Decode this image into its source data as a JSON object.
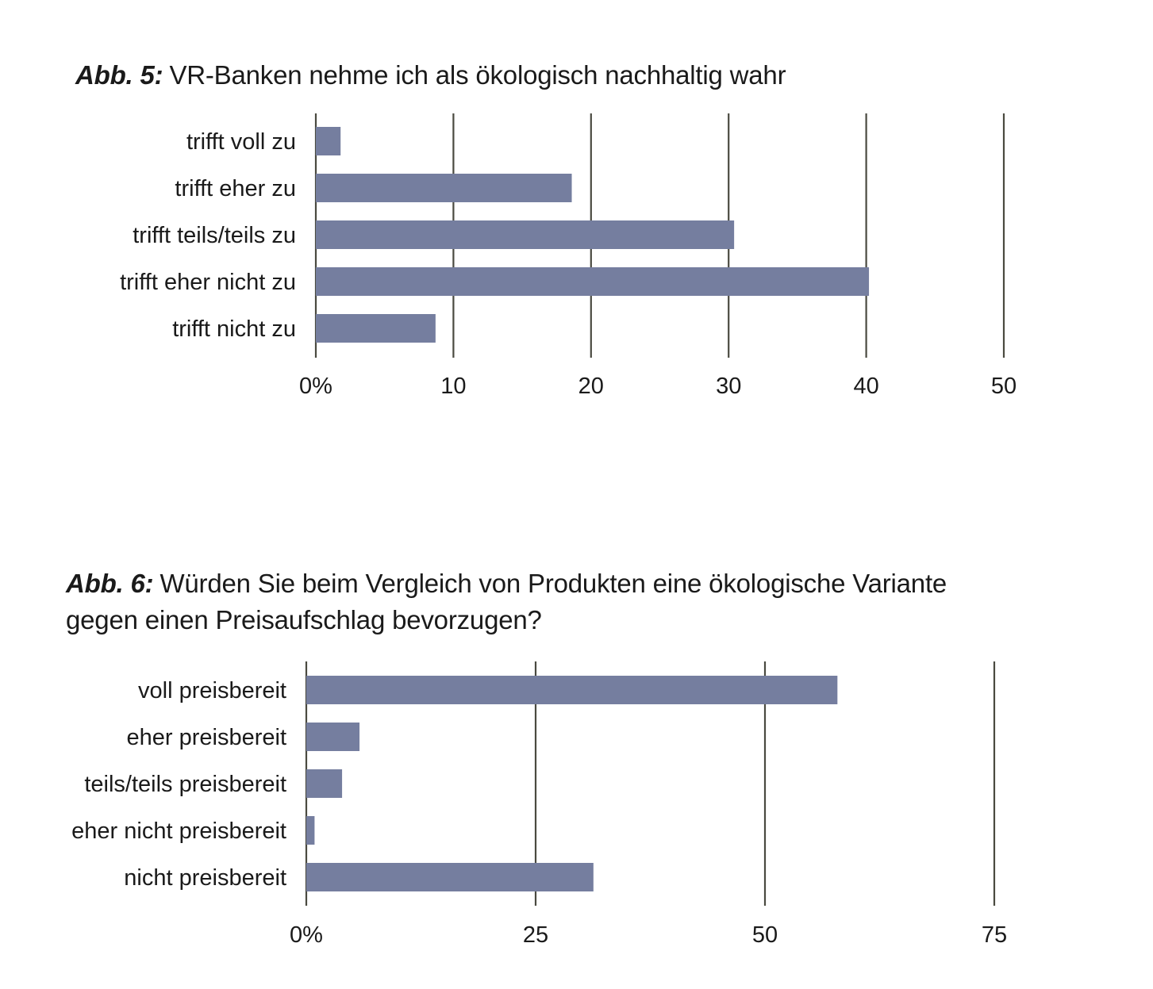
{
  "charts": [
    {
      "figure_label": "Abb. 5:",
      "title": "VR-Banken nehme ich als ökologisch nachhaltig wahr"
    },
    {
      "figure_label": "Abb. 6:",
      "title": "Würden Sie beim Vergleich von Produkten eine ökologische Variante gegen einen Preisaufschlag bevorzugen?"
    }
  ],
  "colors": {
    "bar": "#757e9f",
    "grid": "#4a4a40",
    "text": "#1a1a1a"
  },
  "chart_data": [
    {
      "type": "bar",
      "orientation": "horizontal",
      "title": "VR-Banken nehme ich als ökologisch nachhaltig wahr",
      "categories": [
        "trifft voll zu",
        "trifft eher zu",
        "trifft teils/teils zu",
        "trifft eher nicht zu",
        "trifft nicht zu"
      ],
      "values": [
        1.8,
        18.6,
        30.4,
        40.2,
        8.7
      ],
      "xlim": [
        0,
        50
      ],
      "xticks": [
        0,
        10,
        20,
        30,
        40,
        50
      ],
      "xtick_labels": [
        "0%",
        "10",
        "20",
        "30",
        "40",
        "50"
      ],
      "grid": true
    },
    {
      "type": "bar",
      "orientation": "horizontal",
      "title": "Würden Sie beim Vergleich von Produkten eine ökologische Variante gegen einen Preisaufschlag bevorzugen?",
      "categories": [
        "voll preisbereit",
        "eher preisbereit",
        "teils/teils preisbereit",
        "eher nicht preisbereit",
        "nicht preisbereit"
      ],
      "values": [
        57.9,
        5.8,
        3.9,
        0.9,
        31.3
      ],
      "xlim": [
        0,
        75
      ],
      "xticks": [
        0,
        25,
        50,
        75
      ],
      "xtick_labels": [
        "0%",
        "25",
        "50",
        "75"
      ],
      "grid": true
    }
  ]
}
